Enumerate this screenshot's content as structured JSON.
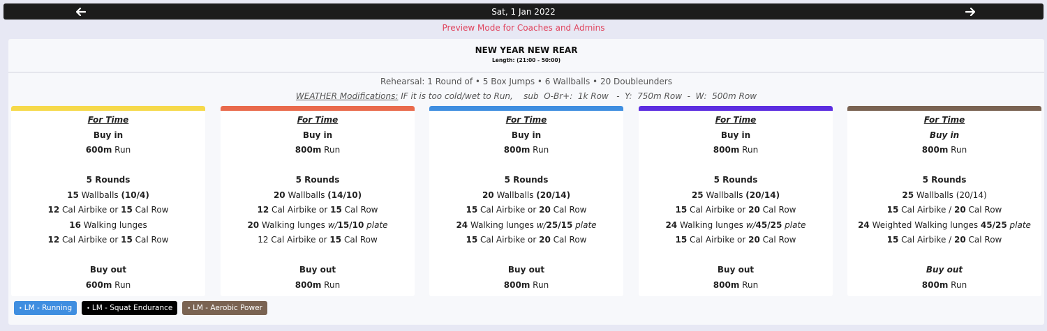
{
  "header": {
    "date": "Sat, 1 Jan 2022",
    "prev_icon": "arrow-left-icon",
    "next_icon": "arrow-right-icon"
  },
  "preview_notice": "Preview Mode for Coaches and Admins",
  "workout": {
    "title": "NEW YEAR NEW REAR",
    "length": "Length: (21:00 - 50:00)",
    "rehearsal": "Rehearsal: 1 Round of • 5 Box Jumps • 6 Wallballs • 20 Doubleunders",
    "weather_label": "WEATHER Modifications:",
    "weather_text": " IF it is too cold/wet to Run,    sub  O-Br+:  1k Row   -  Y:  750m Row  -  W:  500m Row"
  },
  "colors": {
    "bar_colors": [
      "#f6d94a",
      "#e96a4c",
      "#3f8ee0",
      "#5c2de0",
      "#7a6352"
    ],
    "tag_colors": [
      "#3f8ee0",
      "#000000",
      "#7a6352"
    ]
  },
  "columns": [
    {
      "for_time": "For Time",
      "buy_in": "Buy in",
      "buy_in_dist": "600m",
      "buy_in_act": " Run",
      "rounds": "5 Rounds",
      "wallballs_n": "15",
      "wallballs_label": " Wallballs ",
      "wallballs_w": "(10/4)",
      "bike_n1": "12",
      "bike_mid": " Cal Airbike or ",
      "bike_n2": "15",
      "bike_end": " Cal Row",
      "lunges_n": "16",
      "lunges_label": " Walking lunges",
      "lunges_pre": "",
      "lunges_w": "",
      "lunges_post": "",
      "bike2_n1": "12",
      "bike2_mid": " Cal Airbike or ",
      "bike2_n2": "15",
      "bike2_end": " Cal Row",
      "buy_out": "Buy out",
      "buy_out_dist": "600m",
      "buy_out_act": " Run"
    },
    {
      "for_time": "For Time",
      "buy_in": "Buy in",
      "buy_in_dist": "800m",
      "buy_in_act": " Run",
      "rounds": "5 Rounds",
      "wallballs_n": "20",
      "wallballs_label": " Wallballs ",
      "wallballs_w": "(14/10)",
      "bike_n1": "12",
      "bike_mid": " Cal Airbike or ",
      "bike_n2": "15",
      "bike_end": " Cal Row",
      "lunges_n": "20",
      "lunges_label": " Walking lunges ",
      "lunges_pre": "w/",
      "lunges_w": "15/10",
      "lunges_post": " plate",
      "bike2_n1": "12",
      "bike2_mid": " Cal Airbike or ",
      "bike2_n2": "15",
      "bike2_end": " Cal Row",
      "buy_out": "Buy out",
      "buy_out_dist": "800m",
      "buy_out_act": " Run"
    },
    {
      "for_time": "For Time",
      "buy_in": "Buy in",
      "buy_in_dist": "800m",
      "buy_in_act": " Run",
      "rounds": "5 Rounds",
      "wallballs_n": "20",
      "wallballs_label": " Wallballs ",
      "wallballs_w": "(20/14)",
      "bike_n1": "15",
      "bike_mid": " Cal Airbike or ",
      "bike_n2": "20",
      "bike_end": " Cal Row",
      "lunges_n": "24",
      "lunges_label": " Walking lunges ",
      "lunges_pre": "w/",
      "lunges_w": "25/15",
      "lunges_post": " plate",
      "bike2_n1": "15",
      "bike2_mid": " Cal Airbike or ",
      "bike2_n2": "20",
      "bike2_end": " Cal Row",
      "buy_out": "Buy out",
      "buy_out_dist": "800m",
      "buy_out_act": " Run"
    },
    {
      "for_time": "For Time",
      "buy_in": "Buy in",
      "buy_in_dist": "800m",
      "buy_in_act": " Run",
      "rounds": "5 Rounds",
      "wallballs_n": "25",
      "wallballs_label": " Wallballs ",
      "wallballs_w": "(20/14)",
      "bike_n1": "15",
      "bike_mid": " Cal Airbike or ",
      "bike_n2": "20",
      "bike_end": " Cal Row",
      "lunges_n": "24",
      "lunges_label": " Walking lunges ",
      "lunges_pre": "w/",
      "lunges_w": "45/25",
      "lunges_post": " plate",
      "bike2_n1": "15",
      "bike2_mid": " Cal Airbike or ",
      "bike2_n2": "20",
      "bike2_end": " Cal Row",
      "buy_out": "Buy out",
      "buy_out_dist": "800m",
      "buy_out_act": " Run"
    },
    {
      "for_time": "For Time",
      "buy_in": "Buy in",
      "buy_in_dist": "800m",
      "buy_in_act": " Run",
      "rounds": "5 Rounds",
      "wallballs_n": "25",
      "wallballs_label": " Wallballs ",
      "wallballs_w": "(20/14)",
      "bike_n1": "15",
      "bike_mid": " Cal Airbike / ",
      "bike_n2": "20",
      "bike_end": " Cal Row",
      "lunges_n": "24",
      "lunges_label": " Weighted Walking lunges ",
      "lunges_pre": "",
      "lunges_w": "45/25",
      "lunges_post": " plate",
      "bike2_n1": "15",
      "bike2_mid": " Cal Airbike / ",
      "bike2_n2": "20",
      "bike2_end": " Cal Row",
      "buy_out": "Buy out",
      "buy_out_dist": "800m",
      "buy_out_act": " Run"
    }
  ],
  "tags": [
    {
      "dot": "•",
      "label": "LM - Running"
    },
    {
      "dot": "•",
      "label": "LM - Squat Endurance"
    },
    {
      "dot": "•",
      "label": "LM - Aerobic Power"
    }
  ]
}
